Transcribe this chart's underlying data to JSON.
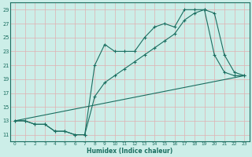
{
  "xlabel": "Humidex (Indice chaleur)",
  "bg_color": "#cceee8",
  "grid_color": "#e0b0b0",
  "line_color": "#1a6e60",
  "xlim": [
    -0.5,
    23.5
  ],
  "ylim": [
    10.0,
    30.0
  ],
  "xticks": [
    0,
    1,
    2,
    3,
    4,
    5,
    6,
    7,
    8,
    9,
    10,
    11,
    12,
    13,
    14,
    15,
    16,
    17,
    18,
    19,
    20,
    21,
    22,
    23
  ],
  "yticks": [
    11,
    13,
    15,
    17,
    19,
    21,
    23,
    25,
    27,
    29
  ],
  "series1_x": [
    0,
    1,
    2,
    3,
    4,
    5,
    6,
    7,
    8,
    9,
    10,
    11,
    12,
    13,
    14,
    15,
    16,
    17,
    18,
    19,
    20,
    21,
    22,
    23
  ],
  "series1_y": [
    13,
    13,
    12.5,
    12.5,
    11.5,
    11.5,
    11,
    11,
    21,
    24,
    23,
    23,
    23,
    25,
    26.5,
    27,
    26.5,
    29,
    29,
    29,
    22.5,
    20,
    19.5,
    19.5
  ],
  "series2_x": [
    0,
    1,
    2,
    3,
    4,
    5,
    6,
    7,
    8,
    9,
    10,
    11,
    12,
    13,
    14,
    15,
    16,
    17,
    18,
    19,
    20,
    21,
    22,
    23
  ],
  "series2_y": [
    13,
    13,
    12.5,
    12.5,
    11.5,
    11.5,
    11,
    11,
    16.5,
    18.5,
    19.5,
    20.5,
    21.5,
    22.5,
    23.5,
    24.5,
    25.5,
    27.5,
    28.5,
    29,
    28.5,
    22.5,
    20,
    19.5
  ],
  "series3_x": [
    0,
    23
  ],
  "series3_y": [
    13,
    19.5
  ],
  "figsize": [
    3.2,
    2.0
  ],
  "dpi": 100,
  "lw": 0.8,
  "ms": 3.0
}
